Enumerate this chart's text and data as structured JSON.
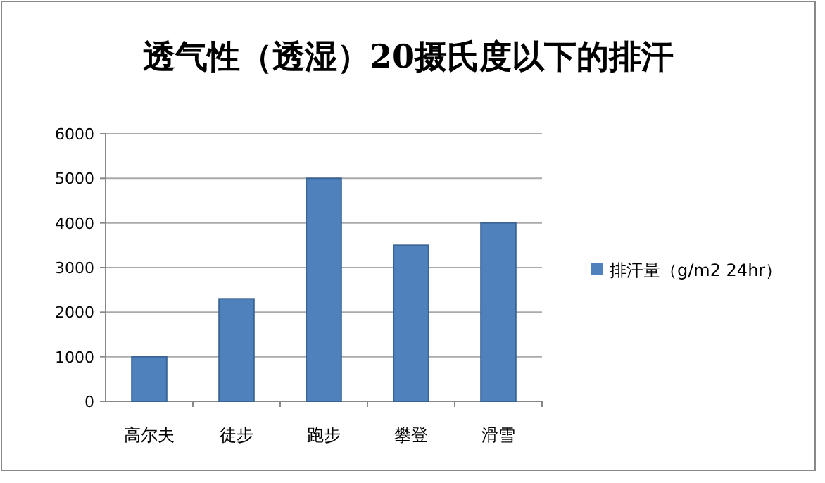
{
  "chart_data": {
    "type": "bar",
    "title": "透气性（透湿）20摄氏度以下的排汗",
    "categories": [
      "高尔夫",
      "徒步",
      "跑步",
      "攀登",
      "滑雪"
    ],
    "series": [
      {
        "name": "排汗量（g/m2 24hr）",
        "color": "#4f81bd",
        "values": [
          1000,
          2300,
          5000,
          3500,
          4000
        ]
      }
    ],
    "ylim": [
      0,
      6000
    ],
    "yticks": [
      0,
      1000,
      2000,
      3000,
      4000,
      5000,
      6000
    ],
    "grid": "y",
    "legend": "right"
  }
}
